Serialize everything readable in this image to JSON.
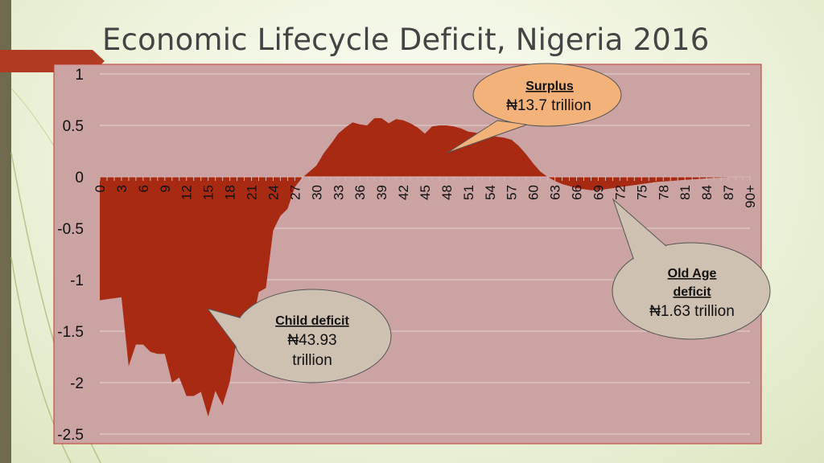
{
  "slide": {
    "title": "Economic Lifecycle Deficit, Nigeria 2016",
    "colors": {
      "background": "#eef3dd",
      "accent": "#a92a13",
      "plot_area": "#cba3a3",
      "title_text": "#444444"
    }
  },
  "chart_data": {
    "type": "area",
    "title": "",
    "xlabel": "",
    "ylabel": "",
    "ylim": [
      -2.5,
      1
    ],
    "y_ticks": [
      "1",
      "0.5",
      "0",
      "-0.5",
      "-1",
      "-1.5",
      "-2",
      "-2.5"
    ],
    "x_tick_labels": [
      "0",
      "3",
      "6",
      "9",
      "12",
      "15",
      "18",
      "21",
      "24",
      "27",
      "30",
      "33",
      "36",
      "39",
      "42",
      "45",
      "48",
      "51",
      "54",
      "57",
      "60",
      "63",
      "66",
      "69",
      "72",
      "75",
      "78",
      "81",
      "84",
      "87",
      "90+"
    ],
    "grid": true,
    "series": [
      {
        "color": "#a92a13",
        "x": [
          "0",
          "1",
          "2",
          "3",
          "4",
          "5",
          "6",
          "7",
          "8",
          "9",
          "10",
          "11",
          "12",
          "13",
          "14",
          "15",
          "16",
          "17",
          "18",
          "19",
          "20",
          "21",
          "22",
          "23",
          "24",
          "25",
          "26",
          "27",
          "28",
          "29",
          "30",
          "31",
          "32",
          "33",
          "34",
          "35",
          "36",
          "37",
          "38",
          "39",
          "40",
          "41",
          "42",
          "43",
          "44",
          "45",
          "46",
          "47",
          "48",
          "49",
          "50",
          "51",
          "52",
          "53",
          "54",
          "55",
          "56",
          "57",
          "58",
          "59",
          "60",
          "61",
          "62",
          "63",
          "64",
          "65",
          "66",
          "67",
          "68",
          "69",
          "70",
          "71",
          "72",
          "73",
          "74",
          "75",
          "76",
          "77",
          "78",
          "79",
          "80",
          "81",
          "82",
          "83",
          "84",
          "85",
          "86",
          "87",
          "88",
          "89",
          "90+"
        ],
        "values": [
          -1.2,
          -1.19,
          -1.18,
          -1.17,
          -1.84,
          -1.63,
          -1.63,
          -1.7,
          -1.72,
          -1.72,
          -2.0,
          -1.95,
          -2.13,
          -2.13,
          -2.09,
          -2.33,
          -2.08,
          -2.22,
          -1.99,
          -1.56,
          -1.47,
          -1.48,
          -1.12,
          -1.08,
          -0.52,
          -0.38,
          -0.31,
          -0.1,
          -0.01,
          0.05,
          0.11,
          0.23,
          0.32,
          0.42,
          0.48,
          0.53,
          0.51,
          0.5,
          0.57,
          0.57,
          0.52,
          0.56,
          0.55,
          0.52,
          0.48,
          0.42,
          0.49,
          0.5,
          0.5,
          0.49,
          0.47,
          0.44,
          0.43,
          0.41,
          0.4,
          0.39,
          0.38,
          0.36,
          0.3,
          0.22,
          0.13,
          0.05,
          0.0,
          -0.04,
          -0.07,
          -0.09,
          -0.11,
          -0.12,
          -0.13,
          -0.13,
          -0.12,
          -0.11,
          -0.1,
          -0.09,
          -0.08,
          -0.07,
          -0.06,
          -0.05,
          -0.045,
          -0.04,
          -0.035,
          -0.03,
          -0.025,
          -0.02,
          -0.015,
          -0.01,
          -0.008,
          -0.005,
          -0.003,
          -0.001,
          0.0
        ]
      }
    ],
    "annotations": [
      {
        "id": "surplus",
        "title": "Surplus",
        "lines": [
          "₦13.7 trillion"
        ],
        "fill": "#f3b27a"
      },
      {
        "id": "child",
        "title": "Child deficit",
        "lines": [
          "₦43.93",
          "trillion"
        ],
        "fill": "#cfc1b2"
      },
      {
        "id": "oldage",
        "title_lines": [
          "Old Age",
          "deficit"
        ],
        "lines": [
          "₦1.63 trillion"
        ],
        "fill": "#cfc1b2"
      }
    ]
  }
}
